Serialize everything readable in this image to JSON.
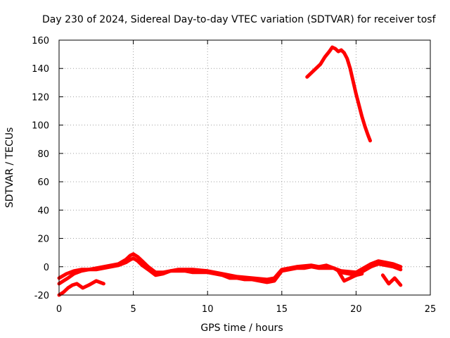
{
  "chart_data": {
    "type": "line",
    "title": "Day 230 of 2024, Sidereal Day-to-day VTEC variation (SDTVAR) for receiver tosf",
    "xlabel": "GPS time / hours",
    "ylabel": "SDTVAR / TECUs",
    "xlim": [
      0,
      25
    ],
    "ylim": [
      -20,
      160
    ],
    "xticks": [
      0,
      5,
      10,
      15,
      20,
      25
    ],
    "yticks": [
      -20,
      0,
      20,
      40,
      60,
      80,
      100,
      120,
      140,
      160
    ],
    "grid": true,
    "color": "#ff0000",
    "series": [
      {
        "name": "main",
        "x": [
          0.0,
          0.3,
          0.6,
          1.0,
          1.5,
          2.0,
          2.5,
          3.0,
          3.5,
          4.0,
          4.5,
          4.8,
          5.0,
          5.3,
          5.6,
          6.0,
          6.5,
          7.0,
          7.5,
          8.0,
          8.5,
          9.0,
          9.5,
          10.0,
          10.5,
          11.0,
          11.5,
          12.0,
          12.5,
          13.0,
          13.5,
          14.0,
          14.5,
          15.0,
          15.5,
          16.0,
          16.5,
          17.0,
          17.5,
          18.0,
          18.5,
          19.0,
          19.5,
          20.0,
          20.5,
          21.0,
          21.5,
          22.0,
          22.5,
          23.0
        ],
        "y": [
          -12,
          -10,
          -8,
          -5,
          -3,
          -2,
          -2,
          -1,
          0,
          1,
          3,
          5,
          6,
          4,
          1,
          -2,
          -6,
          -5,
          -3,
          -3,
          -3,
          -4,
          -4,
          -4,
          -5,
          -6,
          -8,
          -8,
          -9,
          -9,
          -10,
          -11,
          -10,
          -3,
          -2,
          -1,
          -1,
          0,
          -1,
          -1,
          -1,
          -4,
          -5,
          -6,
          -3,
          0,
          2,
          1,
          0,
          -2
        ]
      },
      {
        "name": "spread-upper",
        "x": [
          0.0,
          0.5,
          1.0,
          1.5,
          2.0,
          2.5,
          3.0,
          3.5,
          4.0,
          4.5,
          4.8,
          5.0,
          5.3,
          5.6,
          6.0,
          6.5,
          7.0,
          8.0,
          9.0,
          10.0,
          11.0,
          12.0,
          13.0,
          14.0,
          14.5,
          15.0,
          16.0,
          17.0,
          17.5,
          18.0,
          18.5,
          19.0,
          20.0,
          20.5,
          21.0,
          21.5,
          22.0,
          22.5,
          23.0
        ],
        "y": [
          -8,
          -5,
          -3,
          -2,
          -2,
          -1,
          0,
          1,
          2,
          5,
          8,
          9,
          7,
          4,
          0,
          -4,
          -4,
          -2,
          -2,
          -3,
          -5,
          -7,
          -8,
          -9,
          -8,
          -2,
          0,
          1,
          0,
          1,
          -1,
          -3,
          -4,
          -1,
          2,
          4,
          3,
          2,
          0
        ]
      },
      {
        "name": "spread-lower",
        "x": [
          0.0,
          0.3,
          0.6,
          0.9,
          1.2,
          1.6,
          2.0,
          2.5,
          3.0
        ],
        "y": [
          -20,
          -18,
          -15,
          -13,
          -12,
          -15,
          -13,
          -10,
          -12
        ]
      },
      {
        "name": "dip-20h",
        "x": [
          18.8,
          19.2,
          19.6,
          20.0,
          20.4
        ],
        "y": [
          -3,
          -10,
          -8,
          -6,
          -5
        ]
      },
      {
        "name": "dip-22h",
        "x": [
          21.8,
          22.2,
          22.6,
          23.0
        ],
        "y": [
          -6,
          -12,
          -8,
          -13
        ]
      },
      {
        "name": "high-arc",
        "x": [
          16.7,
          17.0,
          17.3,
          17.6,
          17.9,
          18.2,
          18.4,
          18.6,
          18.8,
          19.0,
          19.2,
          19.4,
          19.6,
          19.8,
          20.0,
          20.2,
          20.4,
          20.6,
          20.8,
          20.95
        ],
        "y": [
          134,
          137,
          140,
          143,
          148,
          152,
          155,
          154,
          152,
          153,
          151,
          147,
          140,
          131,
          122,
          114,
          106,
          99,
          93,
          89
        ]
      }
    ]
  }
}
